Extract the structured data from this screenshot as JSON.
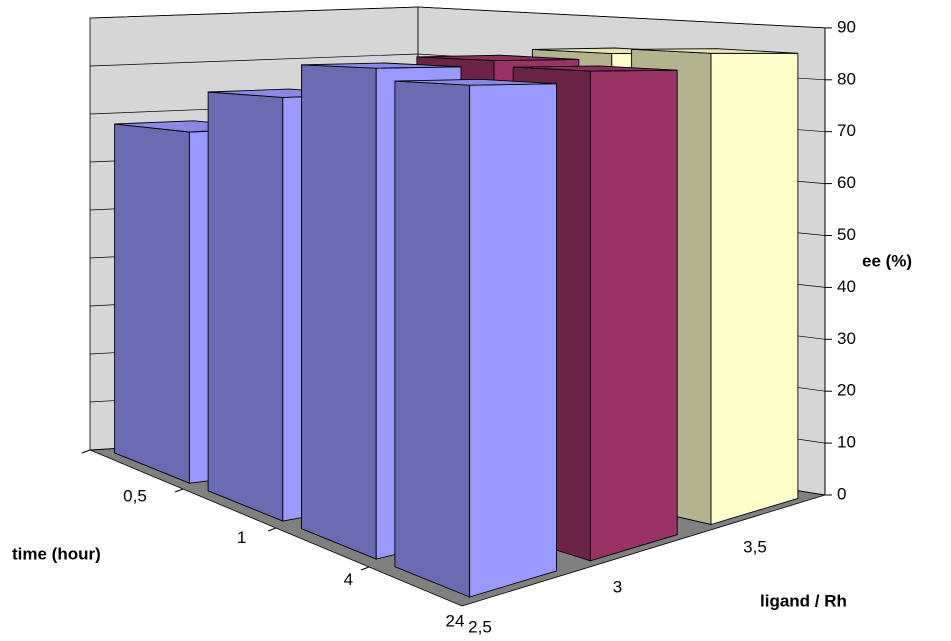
{
  "chart_data": {
    "type": "bar3d",
    "categories": [
      "0,5",
      "1",
      "4",
      "24"
    ],
    "series": [
      {
        "name": "2,5",
        "color": "#9999ff",
        "values": [
          68,
          76,
          82,
          80
        ]
      },
      {
        "name": "3",
        "color": "#993366",
        "values": [
          68,
          73,
          83,
          82
        ]
      },
      {
        "name": "3,5",
        "color": "#ffffcc",
        "values": [
          65,
          72,
          84,
          85
        ]
      }
    ],
    "ylim": [
      0,
      90
    ],
    "yticks": [
      0,
      10,
      20,
      30,
      40,
      50,
      60,
      70,
      80,
      90
    ],
    "x_label": "time (hour)",
    "series_label": "ligand / Rh",
    "y_label": "ee (%)",
    "grid": true
  }
}
